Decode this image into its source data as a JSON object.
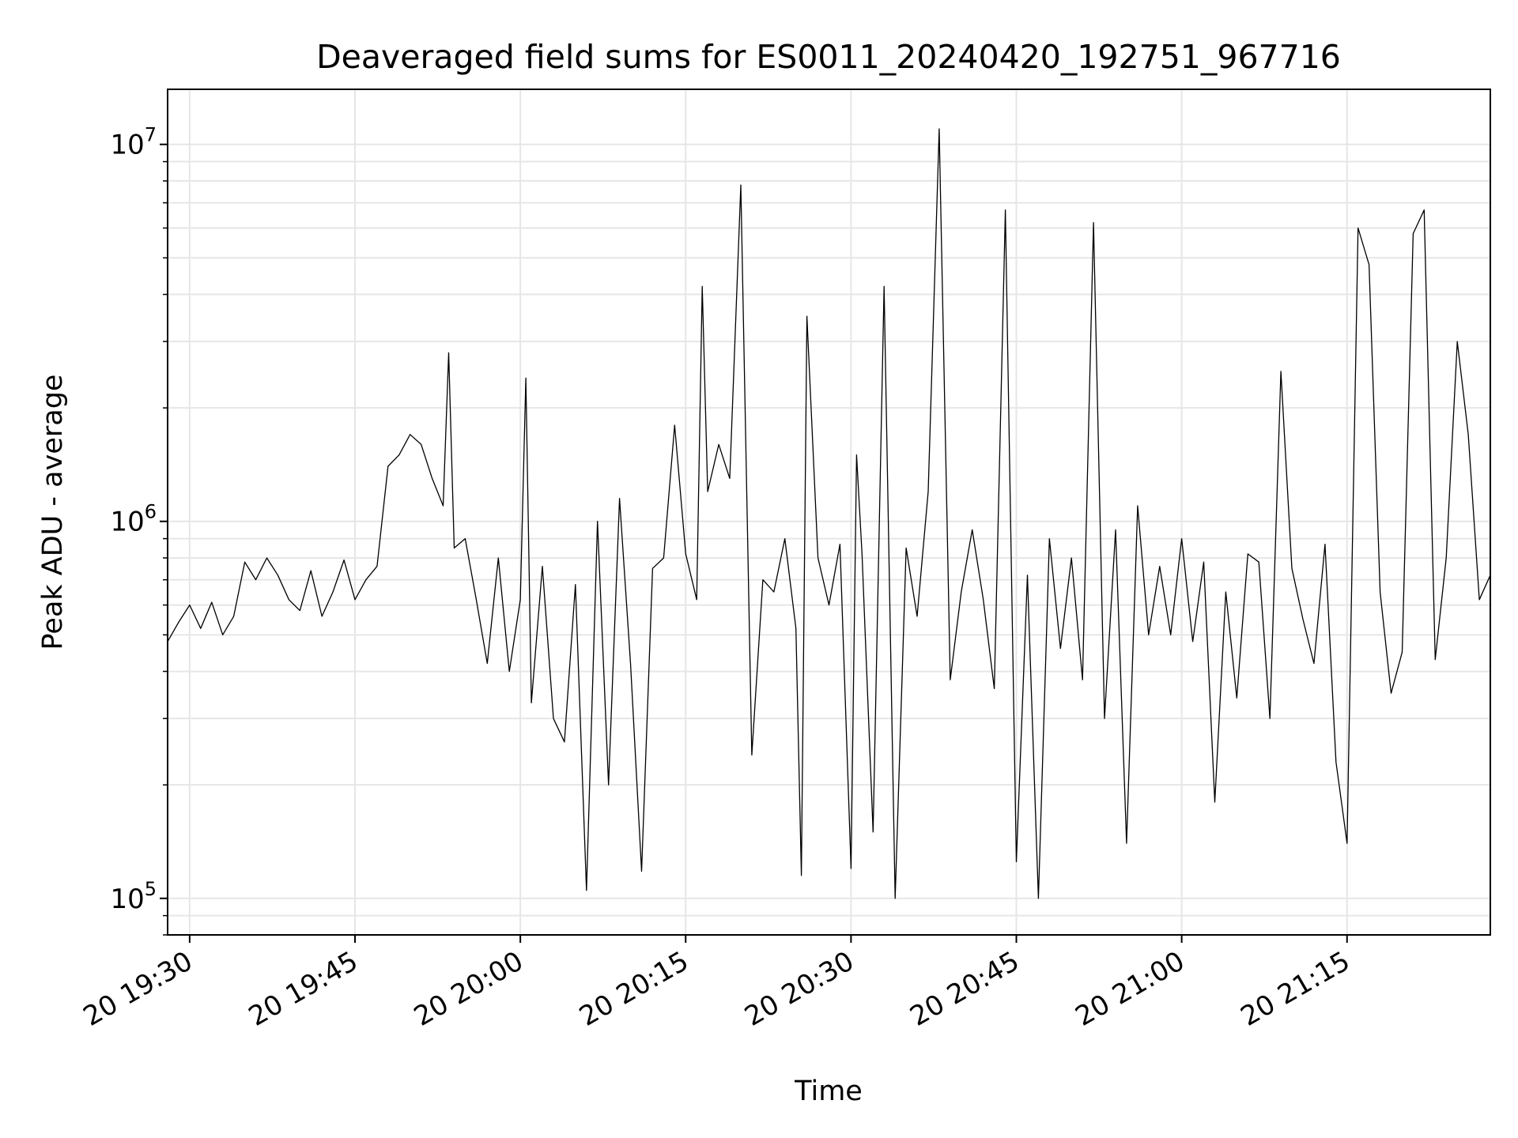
{
  "chart_data": {
    "type": "line",
    "title": "Deaveraged field sums for ES0011_20240420_192751_967716",
    "xlabel": "Time",
    "ylabel": "Peak ADU - average",
    "x_range": [
      "20 19:28",
      "20 21:28"
    ],
    "ylim": [
      80000,
      14000000
    ],
    "y_scale": "log",
    "y_ticks": [
      {
        "value": 100000,
        "base": "10",
        "exp": "5"
      },
      {
        "value": 1000000,
        "base": "10",
        "exp": "6"
      },
      {
        "value": 10000000,
        "base": "10",
        "exp": "7"
      }
    ],
    "x_ticks": [
      {
        "time": "20 19:30",
        "label": "20 19:30"
      },
      {
        "time": "20 19:45",
        "label": "20 19:45"
      },
      {
        "time": "20 20:00",
        "label": "20 20:00"
      },
      {
        "time": "20 20:15",
        "label": "20 20:15"
      },
      {
        "time": "20 20:30",
        "label": "20 20:30"
      },
      {
        "time": "20 20:45",
        "label": "20 20:45"
      },
      {
        "time": "20 21:00",
        "label": "20 21:00"
      },
      {
        "time": "20 21:15",
        "label": "20 21:15"
      }
    ],
    "grid": true,
    "line_color": "#000000",
    "series": [
      {
        "points": [
          [
            "20 19:28:00",
            480000
          ],
          [
            "20 19:29:00",
            540000
          ],
          [
            "20 19:30:00",
            600000
          ],
          [
            "20 19:31:00",
            520000
          ],
          [
            "20 19:32:00",
            610000
          ],
          [
            "20 19:33:00",
            500000
          ],
          [
            "20 19:34:00",
            560000
          ],
          [
            "20 19:35:00",
            780000
          ],
          [
            "20 19:36:00",
            700000
          ],
          [
            "20 19:37:00",
            800000
          ],
          [
            "20 19:38:00",
            720000
          ],
          [
            "20 19:39:00",
            620000
          ],
          [
            "20 19:40:00",
            580000
          ],
          [
            "20 19:41:00",
            740000
          ],
          [
            "20 19:42:00",
            560000
          ],
          [
            "20 19:43:00",
            650000
          ],
          [
            "20 19:44:00",
            790000
          ],
          [
            "20 19:45:00",
            620000
          ],
          [
            "20 19:46:00",
            700000
          ],
          [
            "20 19:47:00",
            760000
          ],
          [
            "20 19:48:00",
            1400000
          ],
          [
            "20 19:49:00",
            1500000
          ],
          [
            "20 19:50:00",
            1700000
          ],
          [
            "20 19:51:00",
            1600000
          ],
          [
            "20 19:52:00",
            1300000
          ],
          [
            "20 19:53:00",
            1100000
          ],
          [
            "20 19:53:30",
            2800000
          ],
          [
            "20 19:54:00",
            850000
          ],
          [
            "20 19:55:00",
            900000
          ],
          [
            "20 19:56:00",
            620000
          ],
          [
            "20 19:57:00",
            420000
          ],
          [
            "20 19:58:00",
            800000
          ],
          [
            "20 19:59:00",
            400000
          ],
          [
            "20 20:00:00",
            620000
          ],
          [
            "20 20:00:30",
            2400000
          ],
          [
            "20 20:01:00",
            330000
          ],
          [
            "20 20:02:00",
            760000
          ],
          [
            "20 20:03:00",
            300000
          ],
          [
            "20 20:04:00",
            260000
          ],
          [
            "20 20:05:00",
            680000
          ],
          [
            "20 20:06:00",
            105000
          ],
          [
            "20 20:07:00",
            1000000
          ],
          [
            "20 20:08:00",
            200000
          ],
          [
            "20 20:09:00",
            1150000
          ],
          [
            "20 20:10:00",
            420000
          ],
          [
            "20 20:11:00",
            118000
          ],
          [
            "20 20:12:00",
            750000
          ],
          [
            "20 20:13:00",
            800000
          ],
          [
            "20 20:14:00",
            1800000
          ],
          [
            "20 20:15:00",
            820000
          ],
          [
            "20 20:16:00",
            620000
          ],
          [
            "20 20:16:30",
            4200000
          ],
          [
            "20 20:17:00",
            1200000
          ],
          [
            "20 20:18:00",
            1600000
          ],
          [
            "20 20:19:00",
            1300000
          ],
          [
            "20 20:20:00",
            7800000
          ],
          [
            "20 20:21:00",
            240000
          ],
          [
            "20 20:22:00",
            700000
          ],
          [
            "20 20:23:00",
            650000
          ],
          [
            "20 20:24:00",
            900000
          ],
          [
            "20 20:25:00",
            520000
          ],
          [
            "20 20:25:30",
            115000
          ],
          [
            "20 20:26:00",
            3500000
          ],
          [
            "20 20:27:00",
            800000
          ],
          [
            "20 20:28:00",
            600000
          ],
          [
            "20 20:29:00",
            870000
          ],
          [
            "20 20:30:00",
            120000
          ],
          [
            "20 20:30:30",
            1500000
          ],
          [
            "20 20:31:00",
            820000
          ],
          [
            "20 20:32:00",
            150000
          ],
          [
            "20 20:33:00",
            4200000
          ],
          [
            "20 20:34:00",
            100000
          ],
          [
            "20 20:35:00",
            850000
          ],
          [
            "20 20:36:00",
            560000
          ],
          [
            "20 20:37:00",
            1200000
          ],
          [
            "20 20:38:00",
            11000000
          ],
          [
            "20 20:39:00",
            380000
          ],
          [
            "20 20:40:00",
            650000
          ],
          [
            "20 20:41:00",
            950000
          ],
          [
            "20 20:42:00",
            620000
          ],
          [
            "20 20:43:00",
            360000
          ],
          [
            "20 20:44:00",
            6700000
          ],
          [
            "20 20:45:00",
            125000
          ],
          [
            "20 20:46:00",
            720000
          ],
          [
            "20 20:47:00",
            100000
          ],
          [
            "20 20:48:00",
            900000
          ],
          [
            "20 20:49:00",
            460000
          ],
          [
            "20 20:50:00",
            800000
          ],
          [
            "20 20:51:00",
            380000
          ],
          [
            "20 20:52:00",
            6200000
          ],
          [
            "20 20:53:00",
            300000
          ],
          [
            "20 20:54:00",
            950000
          ],
          [
            "20 20:55:00",
            140000
          ],
          [
            "20 20:56:00",
            1100000
          ],
          [
            "20 20:57:00",
            500000
          ],
          [
            "20 20:58:00",
            760000
          ],
          [
            "20 20:59:00",
            500000
          ],
          [
            "20 21:00:00",
            900000
          ],
          [
            "20 21:01:00",
            480000
          ],
          [
            "20 21:02:00",
            780000
          ],
          [
            "20 21:03:00",
            180000
          ],
          [
            "20 21:04:00",
            650000
          ],
          [
            "20 21:05:00",
            340000
          ],
          [
            "20 21:06:00",
            820000
          ],
          [
            "20 21:07:00",
            780000
          ],
          [
            "20 21:08:00",
            300000
          ],
          [
            "20 21:09:00",
            2500000
          ],
          [
            "20 21:10:00",
            750000
          ],
          [
            "20 21:11:00",
            550000
          ],
          [
            "20 21:12:00",
            420000
          ],
          [
            "20 21:13:00",
            870000
          ],
          [
            "20 21:14:00",
            230000
          ],
          [
            "20 21:15:00",
            140000
          ],
          [
            "20 21:16:00",
            6000000
          ],
          [
            "20 21:17:00",
            4800000
          ],
          [
            "20 21:18:00",
            650000
          ],
          [
            "20 21:19:00",
            350000
          ],
          [
            "20 21:20:00",
            450000
          ],
          [
            "20 21:21:00",
            5800000
          ],
          [
            "20 21:22:00",
            6700000
          ],
          [
            "20 21:23:00",
            430000
          ],
          [
            "20 21:24:00",
            800000
          ],
          [
            "20 21:25:00",
            3000000
          ],
          [
            "20 21:26:00",
            1700000
          ],
          [
            "20 21:27:00",
            620000
          ],
          [
            "20 21:28:00",
            720000
          ]
        ]
      }
    ]
  }
}
